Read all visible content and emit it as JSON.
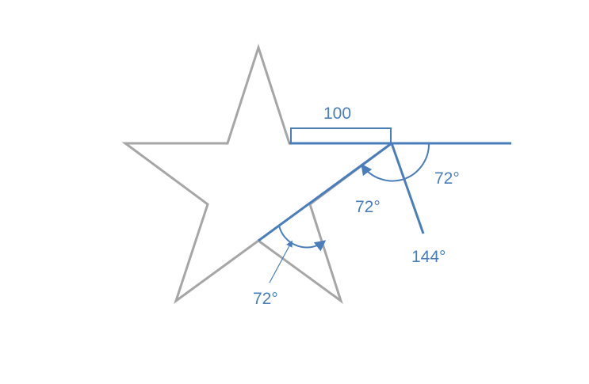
{
  "diagram": {
    "side_length_label": "100",
    "angle_labels": {
      "exterior_top": "72°",
      "interior_top": "72°",
      "point_angle": "144°",
      "bottom_angle": "72°"
    }
  },
  "colors": {
    "star_stroke": "#a6a6a6",
    "accent_blue": "#4a7ebb",
    "label_blue": "#4a7ebb"
  }
}
